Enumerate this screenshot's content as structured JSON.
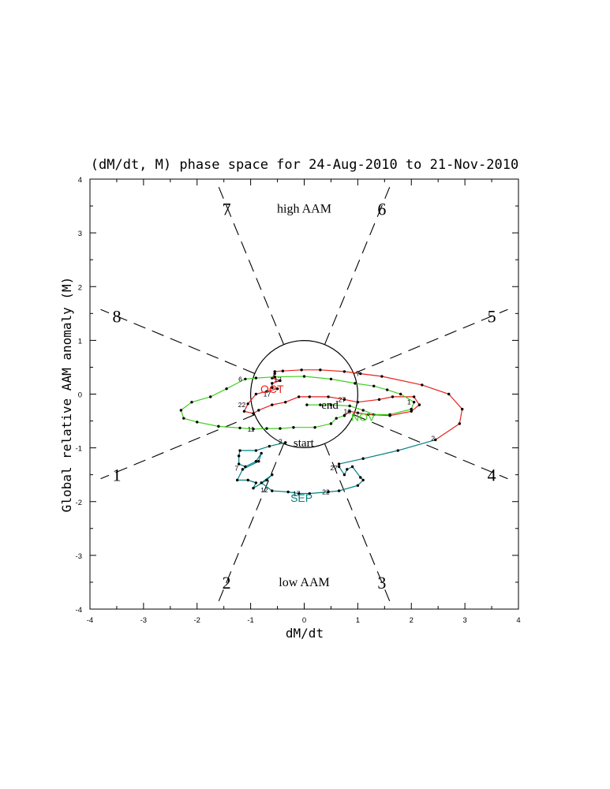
{
  "chart_data": {
    "type": "line",
    "title": "(dM/dt, M) phase space for 24-Aug-2010 to 21-Nov-2010",
    "xlabel": "dM/dt",
    "ylabel": "Global relative AAM anomaly (M)",
    "xlim": [
      -4,
      4
    ],
    "ylim": [
      -4,
      4
    ],
    "xticks": [
      "-4",
      "-3",
      "-2",
      "-1",
      "0",
      "1",
      "2",
      "3",
      "4"
    ],
    "yticks": [
      "-4",
      "-3",
      "-2",
      "-1",
      "0",
      "1",
      "2",
      "3",
      "4"
    ],
    "grid": false,
    "unit_circle_radius": 1,
    "phase_labels": [
      {
        "label": "1",
        "x": -3.5,
        "y": -1.5
      },
      {
        "label": "2",
        "x": -1.45,
        "y": -3.5
      },
      {
        "label": "3",
        "x": 1.45,
        "y": -3.5
      },
      {
        "label": "4",
        "x": 3.5,
        "y": -1.5
      },
      {
        "label": "5",
        "x": 3.5,
        "y": 1.45
      },
      {
        "label": "6",
        "x": 1.45,
        "y": 3.45
      },
      {
        "label": "7",
        "x": -1.45,
        "y": 3.45
      },
      {
        "label": "8",
        "x": -3.5,
        "y": 1.45
      }
    ],
    "region_labels": {
      "high": "high AAM",
      "low": "low AAM"
    },
    "markers": {
      "start": "start",
      "end": "end"
    },
    "series": [
      {
        "name": "SEP",
        "color": "#008080",
        "points": [
          [
            -0.35,
            -0.9
          ],
          [
            -0.65,
            -0.97
          ],
          [
            -0.9,
            -1.05
          ],
          [
            -1.2,
            -1.05
          ],
          [
            -1.22,
            -1.15
          ],
          [
            -1.22,
            -1.3
          ],
          [
            -1.1,
            -1.35
          ],
          [
            -0.9,
            -1.25
          ],
          [
            -0.8,
            -1.1
          ],
          [
            -0.85,
            -1.25
          ],
          [
            -1.15,
            -1.4
          ],
          [
            -1.25,
            -1.6
          ],
          [
            -1.05,
            -1.6
          ],
          [
            -0.9,
            -1.65
          ],
          [
            -0.95,
            -1.75
          ],
          [
            -0.7,
            -1.6
          ],
          [
            -0.6,
            -1.5
          ],
          [
            -0.8,
            -1.65
          ],
          [
            -0.6,
            -1.8
          ],
          [
            -0.3,
            -1.82
          ],
          [
            -0.1,
            -1.85
          ],
          [
            0.1,
            -1.85
          ],
          [
            0.45,
            -1.82
          ],
          [
            0.65,
            -1.8
          ],
          [
            1.0,
            -1.7
          ],
          [
            1.1,
            -1.6
          ],
          [
            1.05,
            -1.55
          ],
          [
            0.9,
            -1.35
          ],
          [
            0.8,
            -1.4
          ],
          [
            0.75,
            -1.5
          ],
          [
            0.65,
            -1.35
          ],
          [
            0.65,
            -1.3
          ],
          [
            1.1,
            -1.2
          ],
          [
            1.75,
            -1.05
          ],
          [
            2.45,
            -0.85
          ]
        ],
        "day_labels": [
          {
            "text": "2",
            "x": -0.4,
            "y": -0.88
          },
          {
            "text": "7",
            "x": -1.22,
            "y": -1.38
          },
          {
            "text": "12",
            "x": -0.7,
            "y": -1.78
          },
          {
            "text": "17",
            "x": -0.1,
            "y": -1.85
          },
          {
            "text": "22",
            "x": 0.45,
            "y": -1.82
          },
          {
            "text": "27",
            "x": 0.6,
            "y": -1.37
          }
        ]
      },
      {
        "name": "OCT",
        "color": "#e8221c",
        "points": [
          [
            2.45,
            -0.85
          ],
          [
            2.9,
            -0.55
          ],
          [
            2.95,
            -0.28
          ],
          [
            2.7,
            0.0
          ],
          [
            2.2,
            0.17
          ],
          [
            1.45,
            0.33
          ],
          [
            1.05,
            0.38
          ],
          [
            0.75,
            0.42
          ],
          [
            0.3,
            0.45
          ],
          [
            -0.05,
            0.45
          ],
          [
            -0.4,
            0.43
          ],
          [
            -0.55,
            0.42
          ],
          [
            -0.55,
            0.38
          ],
          [
            -0.6,
            0.3
          ],
          [
            -0.45,
            0.25
          ],
          [
            -0.6,
            0.2
          ],
          [
            -0.6,
            0.12
          ],
          [
            -0.5,
            0.1
          ],
          [
            -0.7,
            0.05
          ],
          [
            -0.9,
            0.0
          ],
          [
            -1.05,
            -0.18
          ],
          [
            -1.12,
            -0.32
          ],
          [
            -0.95,
            -0.36
          ],
          [
            -0.85,
            -0.3
          ],
          [
            -0.6,
            -0.2
          ],
          [
            -0.35,
            -0.15
          ],
          [
            -0.1,
            -0.05
          ],
          [
            0.1,
            -0.05
          ],
          [
            0.45,
            -0.05
          ],
          [
            0.75,
            -0.1
          ],
          [
            1.0,
            -0.15
          ],
          [
            1.4,
            -0.1
          ],
          [
            1.65,
            -0.05
          ],
          [
            2.05,
            -0.05
          ],
          [
            2.15,
            -0.2
          ],
          [
            2.0,
            -0.32
          ],
          [
            1.6,
            -0.4
          ],
          [
            1.2,
            -0.38
          ],
          [
            1.0,
            -0.35
          ],
          [
            0.85,
            -0.32
          ],
          [
            0.75,
            -0.4
          ]
        ],
        "day_labels": [
          {
            "text": "2",
            "x": 2.45,
            "y": -0.82
          },
          {
            "text": "7",
            "x": 1.05,
            "y": 0.38
          },
          {
            "text": "12",
            "x": -0.45,
            "y": 0.28
          },
          {
            "text": "17",
            "x": -0.65,
            "y": 0.0
          },
          {
            "text": "22",
            "x": -1.12,
            "y": -0.2
          },
          {
            "text": "27",
            "x": 0.75,
            "y": -0.1
          }
        ],
        "month_label": {
          "text": "OCT",
          "x": -0.6,
          "y": 0.02
        }
      },
      {
        "name": "NOV",
        "color": "#40d020",
        "points": [
          [
            0.75,
            -0.4
          ],
          [
            0.6,
            -0.45
          ],
          [
            0.5,
            -0.55
          ],
          [
            0.2,
            -0.62
          ],
          [
            -0.2,
            -0.62
          ],
          [
            -0.45,
            -0.64
          ],
          [
            -0.7,
            -0.64
          ],
          [
            -0.95,
            -0.65
          ],
          [
            -1.2,
            -0.63
          ],
          [
            -1.6,
            -0.6
          ],
          [
            -2.0,
            -0.52
          ],
          [
            -2.25,
            -0.45
          ],
          [
            -2.3,
            -0.3
          ],
          [
            -2.1,
            -0.15
          ],
          [
            -1.75,
            -0.05
          ],
          [
            -1.45,
            0.1
          ],
          [
            -1.1,
            0.28
          ],
          [
            -0.9,
            0.3
          ],
          [
            -0.55,
            0.32
          ],
          [
            0.0,
            0.33
          ],
          [
            0.5,
            0.28
          ],
          [
            0.95,
            0.2
          ],
          [
            1.3,
            0.15
          ],
          [
            1.55,
            0.08
          ],
          [
            1.8,
            0.0
          ],
          [
            2.05,
            -0.15
          ],
          [
            2.0,
            -0.28
          ],
          [
            1.6,
            -0.38
          ],
          [
            1.3,
            -0.38
          ],
          [
            1.1,
            -0.3
          ],
          [
            0.85,
            -0.22
          ],
          [
            0.5,
            -0.2
          ],
          [
            0.3,
            -0.2
          ],
          [
            0.05,
            -0.2
          ]
        ],
        "day_labels": [
          {
            "text": "1",
            "x": 2.0,
            "y": -0.15
          },
          {
            "text": "6",
            "x": -1.15,
            "y": 0.28
          },
          {
            "text": "11",
            "x": -0.95,
            "y": -0.65
          },
          {
            "text": "16",
            "x": 0.85,
            "y": -0.32
          }
        ],
        "month_label": {
          "text": "NOV",
          "x": 1.1,
          "y": -0.5
        }
      }
    ],
    "sep_month_label": {
      "text": "SEP",
      "x": -0.05,
      "y": -2.0
    }
  }
}
